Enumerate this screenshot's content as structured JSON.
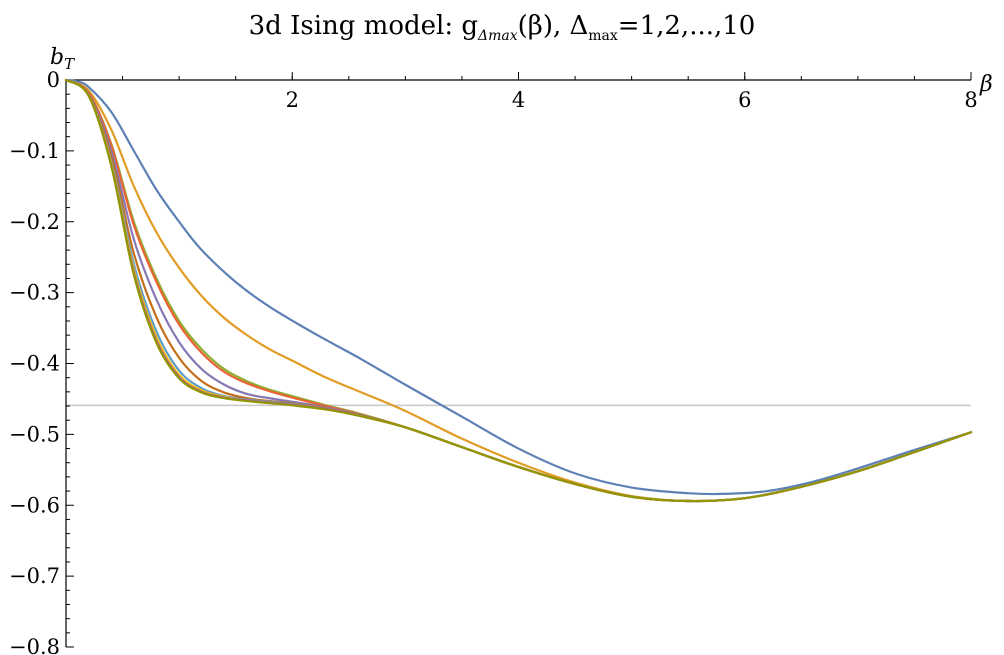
{
  "chart_data": {
    "type": "line",
    "title_text": "3d Ising model: g",
    "title_sub": "Δmax",
    "title_mid": "(β), Δ",
    "title_sub2": "max",
    "title_tail": "=1,2,...,10",
    "xlabel": "β",
    "ylabel": "b",
    "ylabel_sub": "T",
    "xlim": [
      0,
      8
    ],
    "ylim": [
      -0.8,
      0
    ],
    "x_ticks": [
      {
        "value": 2,
        "label": "2"
      },
      {
        "value": 4,
        "label": "4"
      },
      {
        "value": 6,
        "label": "6"
      },
      {
        "value": 8,
        "label": "8"
      }
    ],
    "y_ticks": [
      {
        "value": 0,
        "label": "0"
      },
      {
        "value": -0.1,
        "label": "−0.1"
      },
      {
        "value": -0.2,
        "label": "−0.2"
      },
      {
        "value": -0.3,
        "label": "−0.3"
      },
      {
        "value": -0.4,
        "label": "−0.4"
      },
      {
        "value": -0.5,
        "label": "−0.5"
      },
      {
        "value": -0.6,
        "label": "−0.6"
      },
      {
        "value": -0.7,
        "label": "−0.7"
      },
      {
        "value": -0.8,
        "label": "−0.8"
      }
    ],
    "reference_line": {
      "y": -0.459,
      "color": "#c8c8c8"
    },
    "series": [
      {
        "color": "#5e81b5",
        "x": [
          0,
          0.1,
          0.2,
          0.4,
          0.6,
          0.8,
          1.0,
          1.2,
          1.5,
          1.8,
          2.2,
          2.6,
          3.0,
          3.5,
          4.0,
          4.5,
          5.0,
          5.5,
          5.8,
          6.2,
          6.6,
          7.0,
          7.5,
          8.0
        ],
        "y": [
          0,
          -0.002,
          -0.01,
          -0.045,
          -0.1,
          -0.155,
          -0.2,
          -0.24,
          -0.285,
          -0.32,
          -0.358,
          -0.393,
          -0.43,
          -0.475,
          -0.52,
          -0.555,
          -0.575,
          -0.583,
          -0.584,
          -0.58,
          -0.567,
          -0.548,
          -0.522,
          -0.497
        ]
      },
      {
        "color": "#e19c24",
        "x": [
          0,
          0.2,
          0.4,
          0.6,
          0.8,
          1.0,
          1.2,
          1.4,
          1.6,
          1.8,
          2.0,
          2.3,
          2.6,
          3.0,
          3.5,
          4.0,
          4.5,
          5.0,
          5.5,
          6.0,
          6.5,
          7.0,
          7.5,
          8.0
        ],
        "y": [
          0,
          -0.015,
          -0.07,
          -0.15,
          -0.215,
          -0.265,
          -0.305,
          -0.336,
          -0.36,
          -0.38,
          -0.396,
          -0.42,
          -0.44,
          -0.467,
          -0.506,
          -0.54,
          -0.568,
          -0.587,
          -0.594,
          -0.59,
          -0.574,
          -0.552,
          -0.525,
          -0.497
        ]
      },
      {
        "color": "#8fb032",
        "x": [
          0,
          0.2,
          0.4,
          0.6,
          0.8,
          1.0,
          1.2,
          1.4,
          1.6,
          1.8,
          2.0,
          2.3,
          2.6,
          3.0,
          3.5,
          4.0,
          4.5,
          5.0,
          5.5,
          6.0,
          6.5,
          7.0,
          7.5,
          8.0
        ],
        "y": [
          0,
          -0.018,
          -0.09,
          -0.2,
          -0.28,
          -0.34,
          -0.38,
          -0.408,
          -0.425,
          -0.437,
          -0.446,
          -0.459,
          -0.471,
          -0.49,
          -0.518,
          -0.546,
          -0.57,
          -0.588,
          -0.594,
          -0.59,
          -0.574,
          -0.552,
          -0.525,
          -0.497
        ]
      },
      {
        "color": "#eb6235",
        "x": [
          0,
          0.2,
          0.4,
          0.6,
          0.8,
          1.0,
          1.2,
          1.4,
          1.6,
          1.8,
          2.0,
          2.3,
          2.6,
          3.0,
          3.5,
          4.0,
          4.5,
          5.0,
          5.5,
          6.0,
          6.5,
          7.0,
          7.5,
          8.0
        ],
        "y": [
          0,
          -0.018,
          -0.092,
          -0.205,
          -0.285,
          -0.345,
          -0.385,
          -0.412,
          -0.428,
          -0.439,
          -0.448,
          -0.46,
          -0.472,
          -0.49,
          -0.518,
          -0.546,
          -0.57,
          -0.588,
          -0.594,
          -0.59,
          -0.574,
          -0.552,
          -0.525,
          -0.497
        ]
      },
      {
        "color": "#8778b3",
        "x": [
          0,
          0.2,
          0.4,
          0.6,
          0.8,
          1.0,
          1.2,
          1.4,
          1.6,
          1.8,
          2.0,
          2.3,
          2.6,
          3.0,
          3.5,
          4.0,
          4.5,
          5.0,
          5.5,
          6.0,
          6.5,
          7.0,
          7.5,
          8.0
        ],
        "y": [
          0,
          -0.02,
          -0.1,
          -0.225,
          -0.31,
          -0.37,
          -0.408,
          -0.43,
          -0.443,
          -0.449,
          -0.454,
          -0.462,
          -0.473,
          -0.49,
          -0.518,
          -0.546,
          -0.57,
          -0.588,
          -0.594,
          -0.59,
          -0.574,
          -0.552,
          -0.525,
          -0.497
        ]
      },
      {
        "color": "#c56e1a",
        "x": [
          0,
          0.2,
          0.4,
          0.6,
          0.8,
          1.0,
          1.2,
          1.4,
          1.6,
          1.8,
          2.0,
          2.3,
          2.6,
          3.0,
          3.5,
          4.0,
          4.5,
          5.0,
          5.5,
          6.0,
          6.5,
          7.0,
          7.5,
          8.0
        ],
        "y": [
          0,
          -0.021,
          -0.108,
          -0.245,
          -0.335,
          -0.392,
          -0.425,
          -0.441,
          -0.449,
          -0.453,
          -0.456,
          -0.463,
          -0.474,
          -0.49,
          -0.518,
          -0.546,
          -0.57,
          -0.588,
          -0.594,
          -0.59,
          -0.574,
          -0.552,
          -0.525,
          -0.497
        ]
      },
      {
        "color": "#5d9ec7",
        "x": [
          0,
          0.2,
          0.4,
          0.6,
          0.8,
          1.0,
          1.2,
          1.4,
          1.6,
          1.8,
          2.0,
          2.3,
          2.6,
          3.0,
          3.5,
          4.0,
          4.5,
          5.0,
          5.5,
          6.0,
          6.5,
          7.0,
          7.5,
          8.0
        ],
        "y": [
          0,
          -0.022,
          -0.115,
          -0.26,
          -0.355,
          -0.41,
          -0.435,
          -0.446,
          -0.451,
          -0.454,
          -0.457,
          -0.464,
          -0.474,
          -0.49,
          -0.518,
          -0.546,
          -0.57,
          -0.588,
          -0.594,
          -0.59,
          -0.574,
          -0.552,
          -0.525,
          -0.497
        ]
      },
      {
        "color": "#ffbf00",
        "x": [
          0,
          0.2,
          0.4,
          0.6,
          0.8,
          1.0,
          1.2,
          1.4,
          1.6,
          1.8,
          2.0,
          2.3,
          2.6,
          3.0,
          3.5,
          4.0,
          4.5,
          5.0,
          5.5,
          6.0,
          6.5,
          7.0,
          7.5,
          8.0
        ],
        "y": [
          0,
          -0.022,
          -0.118,
          -0.268,
          -0.363,
          -0.416,
          -0.438,
          -0.447,
          -0.452,
          -0.455,
          -0.458,
          -0.464,
          -0.474,
          -0.49,
          -0.518,
          -0.546,
          -0.57,
          -0.588,
          -0.594,
          -0.59,
          -0.574,
          -0.552,
          -0.525,
          -0.497
        ]
      },
      {
        "color": "#a5609d",
        "x": [
          0,
          0.2,
          0.4,
          0.6,
          0.8,
          1.0,
          1.2,
          1.4,
          1.6,
          1.8,
          2.0,
          2.3,
          2.6,
          3.0,
          3.5,
          4.0,
          4.5,
          5.0,
          5.5,
          6.0,
          6.5,
          7.0,
          7.5,
          8.0
        ],
        "y": [
          0,
          -0.022,
          -0.12,
          -0.272,
          -0.368,
          -0.419,
          -0.44,
          -0.448,
          -0.452,
          -0.455,
          -0.458,
          -0.464,
          -0.474,
          -0.49,
          -0.518,
          -0.546,
          -0.57,
          -0.588,
          -0.594,
          -0.59,
          -0.574,
          -0.552,
          -0.525,
          -0.497
        ]
      },
      {
        "color": "#929600",
        "x": [
          0,
          0.2,
          0.4,
          0.6,
          0.8,
          1.0,
          1.2,
          1.4,
          1.6,
          1.8,
          2.0,
          2.3,
          2.6,
          3.0,
          3.5,
          4.0,
          4.5,
          5.0,
          5.5,
          6.0,
          6.5,
          7.0,
          7.5,
          8.0
        ],
        "y": [
          0,
          -0.022,
          -0.121,
          -0.275,
          -0.371,
          -0.421,
          -0.441,
          -0.449,
          -0.453,
          -0.456,
          -0.459,
          -0.465,
          -0.474,
          -0.49,
          -0.518,
          -0.546,
          -0.57,
          -0.588,
          -0.594,
          -0.59,
          -0.574,
          -0.552,
          -0.525,
          -0.497
        ]
      }
    ]
  }
}
